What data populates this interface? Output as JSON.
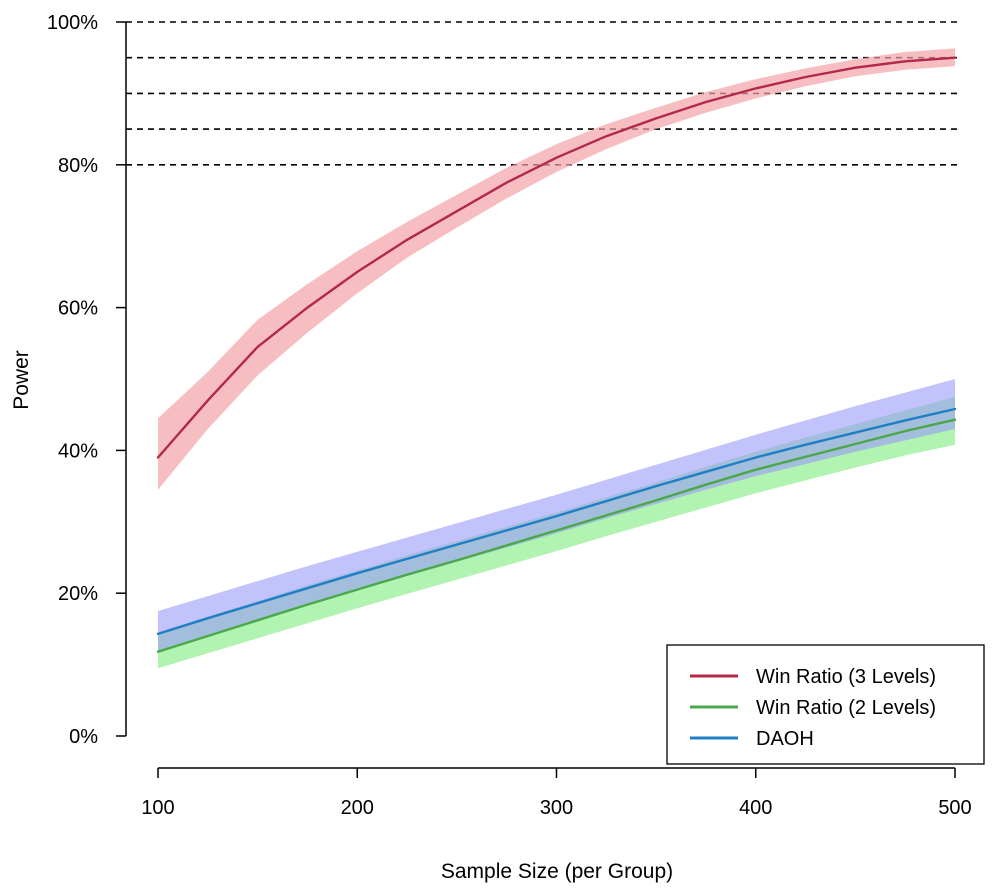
{
  "chart_data": {
    "type": "line",
    "title": "",
    "xlabel": "Sample Size (per Group)",
    "ylabel": "Power",
    "xlim": [
      100,
      500
    ],
    "ylim": [
      0,
      100
    ],
    "x_ticks": [
      100,
      200,
      300,
      400,
      500
    ],
    "y_ticks": [
      0,
      20,
      40,
      60,
      80,
      100
    ],
    "y_tick_labels": [
      "0%",
      "20%",
      "40%",
      "60%",
      "80%",
      "100%"
    ],
    "reference_lines": [
      80,
      85,
      90,
      95,
      100
    ],
    "legend_position": "bottom-right",
    "grid": false,
    "x": [
      100,
      125,
      150,
      175,
      200,
      225,
      250,
      275,
      300,
      325,
      350,
      375,
      400,
      425,
      450,
      475,
      500
    ],
    "series": [
      {
        "name": "Win Ratio (3 Levels)",
        "color": "#b22a45",
        "band_color": "#f4a3a6",
        "values": [
          39,
          47,
          54.5,
          60,
          65,
          69.5,
          73.5,
          77.5,
          81,
          84,
          86.5,
          88.8,
          90.7,
          92.3,
          93.6,
          94.5,
          95
        ],
        "lower": [
          34.5,
          43,
          50.5,
          56.5,
          62,
          67,
          71.2,
          75.3,
          79,
          82.2,
          85,
          87.3,
          89.3,
          91,
          92.4,
          93.3,
          93.8
        ],
        "upper": [
          44.5,
          51,
          58.3,
          63.3,
          67.9,
          72,
          75.8,
          79.6,
          82.9,
          85.7,
          88,
          90.2,
          92,
          93.5,
          94.8,
          95.8,
          96.3
        ]
      },
      {
        "name": "Win Ratio (2 Levels)",
        "color": "#4aa84a",
        "band_color": "#90ee90",
        "values": [
          11.8,
          14,
          16.2,
          18.4,
          20.5,
          22.6,
          24.6,
          26.7,
          28.8,
          30.9,
          33,
          35.2,
          37.3,
          39.1,
          40.9,
          42.7,
          44.3
        ],
        "lower": [
          9.5,
          11.6,
          13.7,
          15.8,
          17.9,
          19.9,
          21.9,
          23.9,
          25.9,
          28,
          30,
          32,
          34,
          35.8,
          37.6,
          39.3,
          40.8
        ],
        "upper": [
          14.5,
          16.7,
          18.9,
          21.1,
          23.2,
          25.3,
          27.3,
          29.3,
          31.3,
          33.4,
          35.5,
          37.7,
          39.8,
          41.8,
          43.7,
          45.6,
          47.5
        ]
      },
      {
        "name": "DAOH",
        "color": "#1f7fc4",
        "band_color": "#9a9afa",
        "values": [
          14.3,
          16.5,
          18.6,
          20.7,
          22.8,
          24.8,
          26.8,
          28.8,
          30.8,
          32.9,
          35,
          37,
          39,
          40.8,
          42.5,
          44.2,
          45.8
        ],
        "lower": [
          12,
          14.2,
          16.3,
          18.4,
          20.4,
          22.4,
          24.4,
          26.4,
          28.4,
          30.5,
          32.5,
          34.5,
          36.4,
          38.1,
          39.8,
          41.4,
          43
        ],
        "upper": [
          17.5,
          19.6,
          21.7,
          23.8,
          25.8,
          27.8,
          29.8,
          31.8,
          33.8,
          35.9,
          38,
          40.1,
          42.2,
          44.2,
          46.2,
          48.1,
          50
        ]
      }
    ]
  }
}
